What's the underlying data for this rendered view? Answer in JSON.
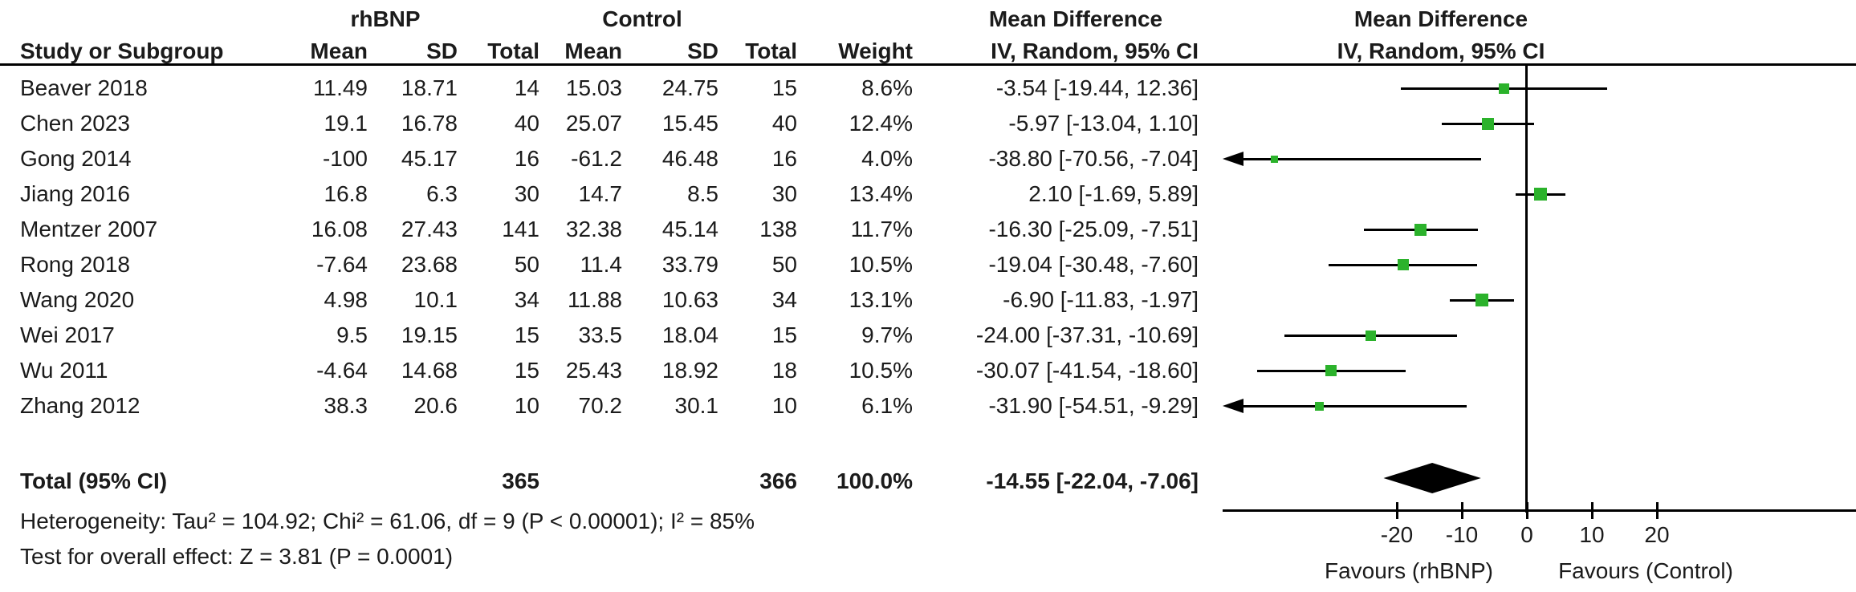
{
  "header": {
    "study_col": "Study or Subgroup",
    "group1": "rhBNP",
    "group2": "Control",
    "effect_title": "Mean Difference",
    "effect_subtitle": "IV, Random, 95% CI",
    "plot_title": "Mean Difference",
    "plot_subtitle": "IV, Random, 95% CI",
    "column_headers": [
      "Mean",
      "SD",
      "Total",
      "Mean",
      "SD",
      "Total",
      "Weight",
      "IV, Random, 95% CI"
    ]
  },
  "studies": [
    {
      "name": "Beaver 2018",
      "mean1": "11.49",
      "sd1": "18.71",
      "total1": "14",
      "mean2": "15.03",
      "sd2": "24.75",
      "total2": "15",
      "weight": "8.6%",
      "ci_text": "-3.54 [-19.44, 12.36]"
    },
    {
      "name": "Chen 2023",
      "mean1": "19.1",
      "sd1": "16.78",
      "total1": "40",
      "mean2": "25.07",
      "sd2": "15.45",
      "total2": "40",
      "weight": "12.4%",
      "ci_text": "-5.97 [-13.04, 1.10]"
    },
    {
      "name": "Gong 2014",
      "mean1": "-100",
      "sd1": "45.17",
      "total1": "16",
      "mean2": "-61.2",
      "sd2": "46.48",
      "total2": "16",
      "weight": "4.0%",
      "ci_text": "-38.80 [-70.56, -7.04]"
    },
    {
      "name": "Jiang 2016",
      "mean1": "16.8",
      "sd1": "6.3",
      "total1": "30",
      "mean2": "14.7",
      "sd2": "8.5",
      "total2": "30",
      "weight": "13.4%",
      "ci_text": "2.10 [-1.69, 5.89]"
    },
    {
      "name": "Mentzer 2007",
      "mean1": "16.08",
      "sd1": "27.43",
      "total1": "141",
      "mean2": "32.38",
      "sd2": "45.14",
      "total2": "138",
      "weight": "11.7%",
      "ci_text": "-16.30 [-25.09, -7.51]"
    },
    {
      "name": "Rong 2018",
      "mean1": "-7.64",
      "sd1": "23.68",
      "total1": "50",
      "mean2": "11.4",
      "sd2": "33.79",
      "total2": "50",
      "weight": "10.5%",
      "ci_text": "-19.04 [-30.48, -7.60]"
    },
    {
      "name": "Wang 2020",
      "mean1": "4.98",
      "sd1": "10.1",
      "total1": "34",
      "mean2": "11.88",
      "sd2": "10.63",
      "total2": "34",
      "weight": "13.1%",
      "ci_text": "-6.90 [-11.83, -1.97]"
    },
    {
      "name": "Wei 2017",
      "mean1": "9.5",
      "sd1": "19.15",
      "total1": "15",
      "mean2": "33.5",
      "sd2": "18.04",
      "total2": "15",
      "weight": "9.7%",
      "ci_text": "-24.00 [-37.31, -10.69]"
    },
    {
      "name": "Wu 2011",
      "mean1": "-4.64",
      "sd1": "14.68",
      "total1": "15",
      "mean2": "25.43",
      "sd2": "18.92",
      "total2": "18",
      "weight": "10.5%",
      "ci_text": "-30.07 [-41.54, -18.60]"
    },
    {
      "name": "Zhang 2012",
      "mean1": "38.3",
      "sd1": "20.6",
      "total1": "10",
      "mean2": "70.2",
      "sd2": "30.1",
      "total2": "10",
      "weight": "6.1%",
      "ci_text": "-31.90 [-54.51, -9.29]"
    }
  ],
  "total": {
    "label": "Total (95% CI)",
    "total1": "365",
    "total2": "366",
    "weight": "100.0%",
    "ci_text": "-14.55 [-22.04, -7.06]"
  },
  "footer": {
    "heterogeneity": "Heterogeneity: Tau² = 104.92; Chi² = 61.06, df = 9 (P < 0.00001); I² = 85%",
    "overall_effect": "Test for overall effect: Z = 3.81 (P = 0.0001)"
  },
  "chart_data": {
    "type": "forest",
    "title": "Mean Difference",
    "subtitle": "IV, Random, 95% CI",
    "model": "IV, Random, 95% CI",
    "x_ticks": [
      -20,
      -10,
      0,
      10,
      20
    ],
    "x_plot_range": [
      -46.5,
      50.5
    ],
    "zero_line": 0,
    "favours_left": "Favours (rhBNP)",
    "favours_right": "Favours (Control)",
    "marker_color": "#2BB22B",
    "line_color": "#000000",
    "series": [
      {
        "name": "Beaver 2018",
        "md": -3.54,
        "lo": -19.44,
        "hi": 12.36,
        "weight_pct": 8.6,
        "clipped_low": false
      },
      {
        "name": "Chen 2023",
        "md": -5.97,
        "lo": -13.04,
        "hi": 1.1,
        "weight_pct": 12.4,
        "clipped_low": false
      },
      {
        "name": "Gong 2014",
        "md": -38.8,
        "lo": -70.56,
        "hi": -7.04,
        "weight_pct": 4.0,
        "clipped_low": true
      },
      {
        "name": "Jiang 2016",
        "md": 2.1,
        "lo": -1.69,
        "hi": 5.89,
        "weight_pct": 13.4,
        "clipped_low": false
      },
      {
        "name": "Mentzer 2007",
        "md": -16.3,
        "lo": -25.09,
        "hi": -7.51,
        "weight_pct": 11.7,
        "clipped_low": false
      },
      {
        "name": "Rong 2018",
        "md": -19.04,
        "lo": -30.48,
        "hi": -7.6,
        "weight_pct": 10.5,
        "clipped_low": false
      },
      {
        "name": "Wang 2020",
        "md": -6.9,
        "lo": -11.83,
        "hi": -1.97,
        "weight_pct": 13.1,
        "clipped_low": false
      },
      {
        "name": "Wei 2017",
        "md": -24.0,
        "lo": -37.31,
        "hi": -10.69,
        "weight_pct": 9.7,
        "clipped_low": false
      },
      {
        "name": "Wu 2011",
        "md": -30.07,
        "lo": -41.54,
        "hi": -18.6,
        "weight_pct": 10.5,
        "clipped_low": false
      },
      {
        "name": "Zhang 2012",
        "md": -31.9,
        "lo": -54.51,
        "hi": -9.29,
        "weight_pct": 6.1,
        "clipped_low": true
      }
    ],
    "total_diamond": {
      "md": -14.55,
      "lo": -22.04,
      "hi": -7.06
    }
  }
}
